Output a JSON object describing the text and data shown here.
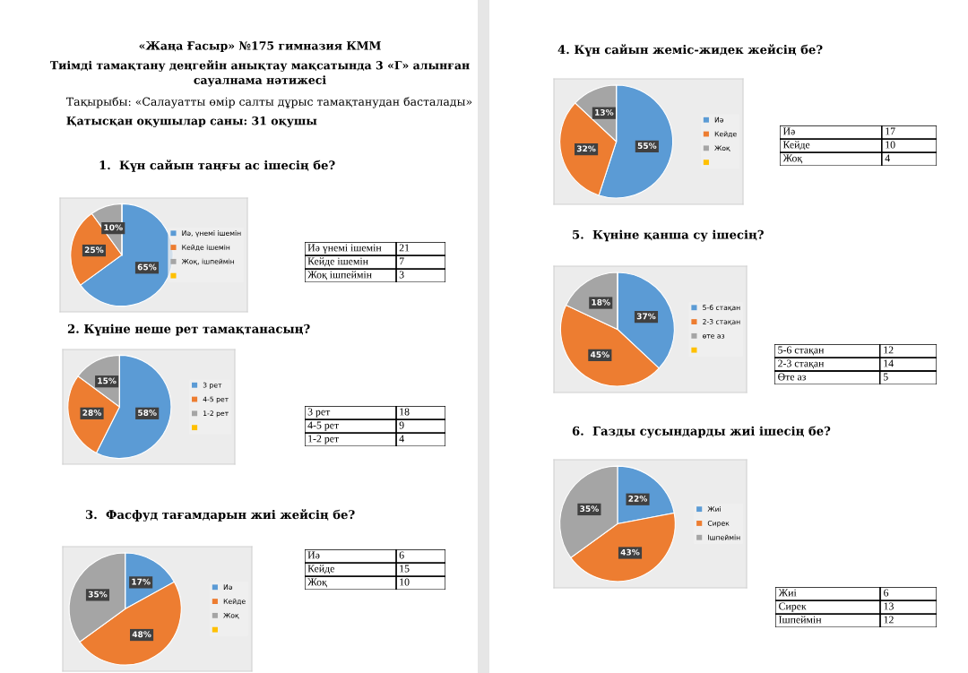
{
  "chart_data": [
    {
      "type": "other",
      "annotations": [
        "«Жаңа Ғасыр» №175 гимназия КММ",
        "Тиімді тамақтану деңгейін анықтау мақсатында 3 «Г» алынған",
        "сауалнама нәтижесі",
        "Тақырыбы: «Салауатты өмір салты дұрыс тамақтанудан басталады»",
        "Қатысқан оқушылар саны: 31 оқушы"
      ]
    },
    {
      "type": "pie",
      "title": "1.  Күн сайын таңғы ас ішесің бе?",
      "categories": [
        "Иә, үнемі ішемін",
        "Кейде ішемін",
        "Жоқ, ішпеймін",
        null
      ],
      "values": [
        65,
        25,
        10,
        0
      ],
      "value_labels": [
        "65%",
        "25%",
        "10%",
        null
      ],
      "colors": [
        "#5b9bd5",
        "#ed7d31",
        "#a5a5a5",
        "#ffc000"
      ],
      "legend": "right"
    },
    {
      "type": "other",
      "categories": [
        "Иә үнемі ішемін",
        "Кейде ішемін",
        "Жоқ ішпеймін"
      ],
      "values": [
        21,
        7,
        3
      ],
      "data_labels": true
    },
    {
      "type": "pie",
      "title": "2. Күніне неше рет тамақтанасың?",
      "categories": [
        "3 рет",
        "4-5 рет",
        "1-2 рет",
        null
      ],
      "values": [
        58,
        28,
        15,
        0
      ],
      "value_labels": [
        "58%",
        "28%",
        "15%",
        null
      ],
      "colors": [
        "#5b9bd5",
        "#ed7d31",
        "#a5a5a5",
        "#ffc000"
      ],
      "legend": "right"
    },
    {
      "type": "other",
      "categories": [
        "3 рет",
        "4-5 рет",
        "1-2 рет"
      ],
      "values": [
        18,
        9,
        4
      ],
      "data_labels": true
    },
    {
      "type": "pie",
      "title": "3.  Фасфуд тағамдарын жиі жейсің бе?",
      "categories": [
        "Иә",
        "Кейде",
        "Жоқ",
        null
      ],
      "values": [
        17,
        48,
        35,
        0
      ],
      "value_labels": [
        "17%",
        "48%",
        "35%",
        null
      ],
      "colors": [
        "#5b9bd5",
        "#ed7d31",
        "#a5a5a5",
        "#ffc000"
      ],
      "legend": "right"
    },
    {
      "type": "other",
      "categories": [
        "Иә",
        "Кейде",
        "Жоқ"
      ],
      "values": [
        6,
        15,
        10
      ],
      "data_labels": true
    },
    {
      "type": "pie",
      "title": "4. Күн сайын жеміс-жидек жейсің бе?",
      "categories": [
        "Иә",
        "Кейде",
        "Жоқ",
        null
      ],
      "values": [
        55,
        32,
        13,
        0
      ],
      "value_labels": [
        "55%",
        "32%",
        "13%",
        null
      ],
      "colors": [
        "#5b9bd5",
        "#ed7d31",
        "#a5a5a5",
        "#ffc000"
      ],
      "legend": "right"
    },
    {
      "type": "other",
      "categories": [
        "Иә",
        "Кейде",
        "Жоқ"
      ],
      "values": [
        17,
        10,
        4
      ],
      "data_labels": true
    },
    {
      "type": "pie",
      "title": "5.  Күніне қанша су ішесің?",
      "categories": [
        "5-6 стақан",
        "2-3 стақан",
        "өте аз",
        null
      ],
      "values": [
        37,
        45,
        18,
        0
      ],
      "value_labels": [
        "37%",
        "45%",
        "18%",
        null
      ],
      "colors": [
        "#5b9bd5",
        "#ed7d31",
        "#a5a5a5",
        "#ffc000"
      ],
      "legend": "right"
    },
    {
      "type": "other",
      "categories": [
        "5-6 стақан",
        "2-3 стақан",
        "Өте аз"
      ],
      "values": [
        12,
        14,
        5
      ],
      "data_labels": true
    },
    {
      "type": "pie",
      "title": "6.  Газды сусындарды жиі ішесің бе?",
      "categories": [
        "Жиі",
        "Сирек",
        "Ішпеймін"
      ],
      "values": [
        22,
        43,
        35
      ],
      "value_labels": [
        "22%",
        "43%",
        "35%"
      ],
      "colors": [
        "#5b9bd5",
        "#ed7d31",
        "#a5a5a5"
      ],
      "legend": "right"
    },
    {
      "type": "other",
      "categories": [
        "Жиі",
        "Сирек",
        "Ішпеймін"
      ],
      "values": [
        6,
        13,
        12
      ],
      "data_labels": true
    }
  ]
}
